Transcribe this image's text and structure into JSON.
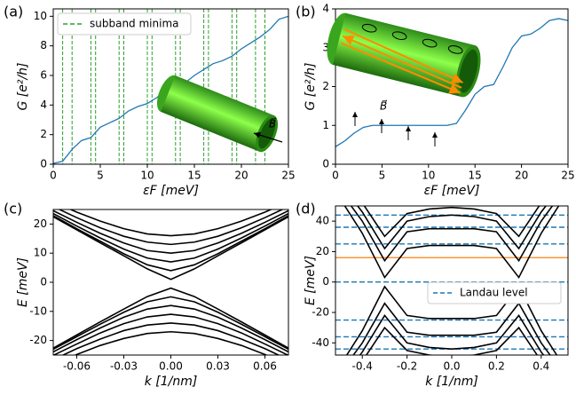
{
  "chart_data": [
    {
      "type": "line",
      "panel_label": "(a)",
      "xlabel": "εF [meV]",
      "ylabel": "G [e²/h]",
      "x": [
        0,
        1,
        2,
        3,
        4,
        5,
        6,
        7,
        8,
        9,
        10,
        11,
        12,
        13,
        14,
        15,
        16,
        17,
        18,
        19,
        20,
        21,
        22,
        23,
        24,
        25
      ],
      "series": [
        {
          "color": "#1f77b4",
          "values": [
            0.05,
            0.2,
            1.0,
            1.6,
            1.8,
            2.5,
            2.8,
            3.1,
            3.6,
            3.9,
            4.1,
            4.5,
            5.0,
            5.3,
            5.5,
            6.0,
            6.4,
            6.8,
            7.0,
            7.3,
            7.8,
            8.2,
            8.6,
            9.1,
            9.8,
            10.0
          ]
        }
      ],
      "vlines": {
        "name": "subband minima",
        "color": "#2ca02c",
        "values": [
          1,
          2,
          4,
          4.5,
          7,
          7.5,
          10,
          10.5,
          13,
          13.5,
          16,
          16.5,
          19,
          19.5,
          21.5,
          22.5
        ]
      },
      "legend": "upper left",
      "inset_label": "B⃗",
      "xlim": [
        0,
        25
      ],
      "ylim": [
        0,
        10.5
      ],
      "xticks": [
        0,
        5,
        10,
        15,
        20,
        25
      ],
      "yticks": [
        0,
        2,
        4,
        6,
        8,
        10
      ]
    },
    {
      "type": "line",
      "panel_label": "(b)",
      "xlabel": "εF [meV]",
      "ylabel": "G [e²/h]",
      "x": [
        0,
        1,
        2,
        3,
        4,
        5,
        6,
        7,
        8,
        9,
        10,
        11,
        12,
        13,
        14,
        15,
        16,
        17,
        18,
        19,
        20,
        21,
        22,
        23,
        24,
        25
      ],
      "series": [
        {
          "color": "#1f77b4",
          "values": [
            0.45,
            0.6,
            0.8,
            0.95,
            1.0,
            1.0,
            1.0,
            1.0,
            1.0,
            1.0,
            1.0,
            1.0,
            1.0,
            1.05,
            1.4,
            1.8,
            2.0,
            2.05,
            2.5,
            3.0,
            3.3,
            3.35,
            3.5,
            3.7,
            3.75,
            3.7
          ]
        }
      ],
      "inset_label": "B⃗",
      "xlim": [
        0,
        25
      ],
      "ylim": [
        0,
        4
      ],
      "xticks": [
        0,
        5,
        10,
        15,
        20,
        25
      ],
      "yticks": [
        0,
        1,
        2,
        3,
        4
      ]
    },
    {
      "type": "line",
      "panel_label": "(c)",
      "xlabel": "k [1/nm]",
      "ylabel": "E [meV]",
      "x": [
        -0.075,
        -0.06,
        -0.045,
        -0.03,
        -0.015,
        0,
        0.015,
        0.03,
        0.045,
        0.06,
        0.075
      ],
      "series": [
        {
          "color": "#000000",
          "values": [
            22.5,
            18.0,
            13.5,
            9.1,
            4.6,
            1,
            4.6,
            9.1,
            13.5,
            18.0,
            22.5
          ]
        },
        {
          "color": "#000000",
          "values": [
            22.9,
            18.4,
            14.1,
            9.8,
            6.0,
            4,
            6.0,
            9.8,
            14.1,
            18.4,
            22.9
          ]
        },
        {
          "color": "#000000",
          "values": [
            23.6,
            19.3,
            15.2,
            11.4,
            8.3,
            7,
            8.3,
            11.4,
            15.2,
            19.3,
            23.6
          ]
        },
        {
          "color": "#000000",
          "values": [
            24.6,
            20.6,
            16.8,
            13.5,
            10.9,
            10,
            10.9,
            13.5,
            16.8,
            20.6,
            24.6
          ]
        },
        {
          "color": "#000000",
          "values": [
            26.0,
            22.2,
            18.7,
            15.8,
            13.8,
            13,
            13.8,
            15.8,
            18.7,
            22.2,
            26.0
          ]
        },
        {
          "color": "#000000",
          "values": [
            27.6,
            24.1,
            21.0,
            18.4,
            16.6,
            16,
            16.6,
            18.4,
            21.0,
            24.1,
            27.6
          ]
        },
        {
          "color": "#000000",
          "values": [
            -22.6,
            -18.1,
            -13.6,
            -9.2,
            -4.9,
            -2,
            -4.9,
            -9.2,
            -13.6,
            -18.1,
            -22.6
          ]
        },
        {
          "color": "#000000",
          "values": [
            -23.0,
            -18.7,
            -14.4,
            -10.3,
            -6.7,
            -5,
            -6.7,
            -10.3,
            -14.4,
            -18.7,
            -23.0
          ]
        },
        {
          "color": "#000000",
          "values": [
            -23.9,
            -19.7,
            -15.7,
            -12.0,
            -9.2,
            -8,
            -9.2,
            -12.0,
            -15.7,
            -19.7,
            -23.9
          ]
        },
        {
          "color": "#000000",
          "values": [
            -25.1,
            -21.2,
            -17.4,
            -14.2,
            -11.9,
            -11,
            -11.9,
            -14.2,
            -17.4,
            -21.2,
            -25.1
          ]
        },
        {
          "color": "#000000",
          "values": [
            -26.6,
            -22.8,
            -19.5,
            -16.6,
            -14.7,
            -14,
            -14.7,
            -16.6,
            -19.5,
            -22.8,
            -26.6
          ]
        },
        {
          "color": "#000000",
          "values": [
            -28.3,
            -24.8,
            -21.7,
            -19.3,
            -17.6,
            -17,
            -17.6,
            -19.3,
            -21.7,
            -24.8,
            -28.3
          ]
        }
      ],
      "xlim": [
        -0.075,
        0.075
      ],
      "ylim": [
        -25,
        25
      ],
      "xticks": [
        -0.06,
        -0.03,
        {
          "value": 0,
          "label": "0.00"
        },
        0.03,
        0.06
      ],
      "yticks": [
        -20,
        -10,
        0,
        10,
        20
      ]
    },
    {
      "type": "line",
      "panel_label": "(d)",
      "xlabel": "k [1/nm]",
      "ylabel": "E [meV]",
      "x": [
        -0.5,
        -0.4,
        -0.3,
        -0.2,
        -0.1,
        0,
        0.1,
        0.2,
        0.3,
        0.4,
        0.5
      ],
      "series": [
        {
          "color": "#000000",
          "values": [
            55,
            32,
            3,
            22,
            24,
            24,
            24,
            22,
            3,
            32,
            55
          ]
        },
        {
          "color": "#000000",
          "values": [
            60,
            40,
            14,
            33,
            35,
            35,
            35,
            33,
            14,
            40,
            60
          ]
        },
        {
          "color": "#000000",
          "values": [
            65,
            46,
            22,
            40,
            43,
            44,
            43,
            40,
            22,
            46,
            65
          ]
        },
        {
          "color": "#000000",
          "values": [
            70,
            52,
            30,
            45,
            48,
            49,
            48,
            45,
            30,
            52,
            70
          ]
        },
        {
          "color": "#000000",
          "values": [
            -55,
            -32,
            -3,
            -22,
            -24,
            -24,
            -24,
            -22,
            -3,
            -32,
            -55
          ]
        },
        {
          "color": "#000000",
          "values": [
            -60,
            -40,
            -14,
            -33,
            -35,
            -35,
            -35,
            -33,
            -14,
            -40,
            -60
          ]
        },
        {
          "color": "#000000",
          "values": [
            -65,
            -46,
            -22,
            -40,
            -43,
            -44,
            -43,
            -40,
            -22,
            -46,
            -65
          ]
        },
        {
          "color": "#000000",
          "values": [
            -70,
            -52,
            -30,
            -45,
            -48,
            -49,
            -48,
            -45,
            -30,
            -52,
            -70
          ]
        }
      ],
      "hlines": {
        "name": "Landau level",
        "color": "#1f77b4",
        "values": [
          -44,
          -36,
          -25,
          0,
          25,
          36,
          44
        ]
      },
      "fermi_line": {
        "color": "#ff7f0e",
        "value": 16
      },
      "legend": "center right",
      "xlim": [
        -0.52,
        0.52
      ],
      "ylim": [
        -48,
        50
      ],
      "xticks": [
        -0.4,
        -0.2,
        {
          "value": 0,
          "label": "0.0"
        },
        0.2,
        0.4
      ],
      "yticks": [
        -40,
        -20,
        0,
        20,
        40
      ]
    }
  ]
}
